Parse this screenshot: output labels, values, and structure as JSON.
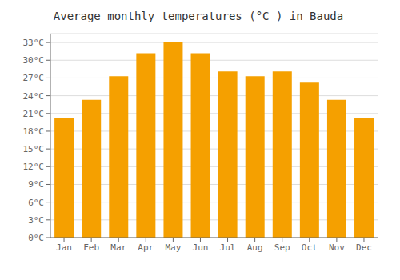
{
  "chart_data": {
    "type": "bar",
    "title": "Average monthly temperatures (°C ) in Bauda",
    "categories": [
      "Jan",
      "Feb",
      "Mar",
      "Apr",
      "May",
      "Jun",
      "Jul",
      "Aug",
      "Sep",
      "Oct",
      "Nov",
      "Dec"
    ],
    "values": [
      20.2,
      23.3,
      27.3,
      31.2,
      33.0,
      31.2,
      28.1,
      27.3,
      28.1,
      26.2,
      23.3,
      20.2
    ],
    "color": "#F5A000",
    "ylim": [
      0,
      34.5
    ],
    "yticks": [
      {
        "value": 0,
        "label": "0°C"
      },
      {
        "value": 3,
        "label": "3°C"
      },
      {
        "value": 6,
        "label": "6°C"
      },
      {
        "value": 9,
        "label": "9°C"
      },
      {
        "value": 12,
        "label": "12°C"
      },
      {
        "value": 15,
        "label": "15°C"
      },
      {
        "value": 18,
        "label": "18°C"
      },
      {
        "value": 21,
        "label": "21°C"
      },
      {
        "value": 24,
        "label": "24°C"
      },
      {
        "value": 27,
        "label": "27°C"
      },
      {
        "value": 30,
        "label": "30°C"
      },
      {
        "value": 33,
        "label": "33°C"
      }
    ],
    "grid": true
  }
}
